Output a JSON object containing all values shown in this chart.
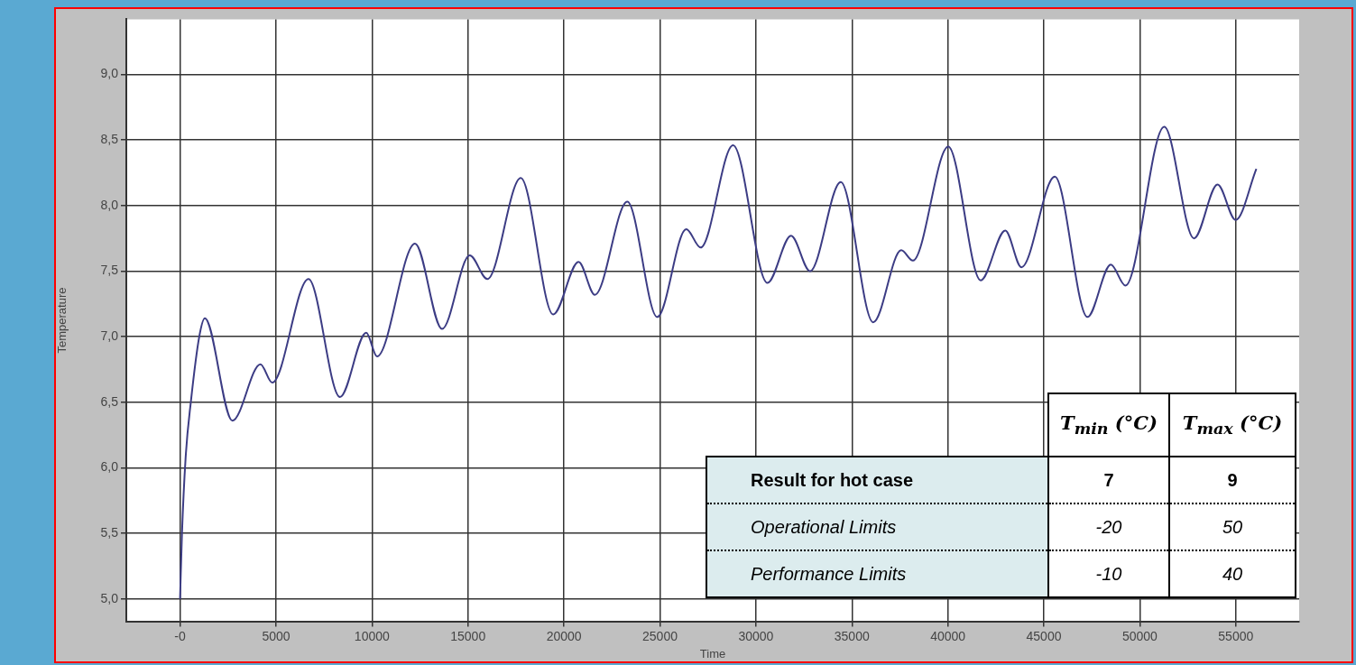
{
  "chart_data": {
    "type": "line",
    "xlabel": "Time",
    "ylabel": "Temperature",
    "x": [
      0,
      100,
      300,
      560,
      1000,
      1290,
      2730,
      4190,
      4800,
      6690,
      8330,
      9700,
      10260,
      12240,
      13650,
      15090,
      16010,
      17750,
      19440,
      20760,
      21610,
      23300,
      24860,
      26370,
      27120,
      28810,
      30600,
      31830,
      32820,
      34420,
      36110,
      37570,
      38180,
      40020,
      41710,
      42990,
      43830,
      45570,
      47270,
      48490,
      49250,
      51270,
      52820,
      54050,
      54990,
      56070
    ],
    "series": [
      {
        "color": "#3c3c84",
        "values": [
          5.0,
          5.5,
          6.1,
          6.5,
          7.0,
          7.14,
          6.36,
          6.79,
          6.65,
          7.44,
          6.54,
          7.03,
          6.85,
          7.71,
          7.06,
          7.62,
          7.44,
          8.21,
          7.17,
          7.57,
          7.32,
          8.03,
          7.15,
          7.82,
          7.68,
          8.46,
          7.41,
          7.77,
          7.5,
          8.18,
          7.11,
          7.66,
          7.58,
          8.45,
          7.43,
          7.81,
          7.53,
          8.22,
          7.15,
          7.55,
          7.39,
          8.6,
          7.75,
          8.16,
          7.89,
          8.28
        ]
      }
    ],
    "xlim": [
      -2800,
      58300
    ],
    "xticks": [
      {
        "value": 0,
        "label": "-0"
      },
      5000,
      10000,
      15000,
      20000,
      25000,
      30000,
      35000,
      40000,
      45000,
      50000,
      55000
    ],
    "ylim": [
      4.83,
      9.42
    ],
    "yticks": [
      {
        "value": 5,
        "label": "5,0"
      },
      {
        "value": 5.5,
        "label": "5,5"
      },
      {
        "value": 6,
        "label": "6,0"
      },
      {
        "value": 6.5,
        "label": "6,5"
      },
      {
        "value": 7,
        "label": "7,0"
      },
      {
        "value": 7.5,
        "label": "7,5"
      },
      {
        "value": 8,
        "label": "8,0"
      },
      {
        "value": 8.5,
        "label": "8,5"
      },
      {
        "value": 9,
        "label": "9,0"
      }
    ],
    "grid": true,
    "marker": "none",
    "line_style": "solid",
    "annotations": [
      "T$_{min}$ (°C)",
      "T$_{max}$ (°C)",
      "Result for hot case",
      "7",
      "9",
      "Operational Limits",
      "-20",
      "50",
      "Performance Limits",
      "-10",
      "40"
    ]
  }
}
